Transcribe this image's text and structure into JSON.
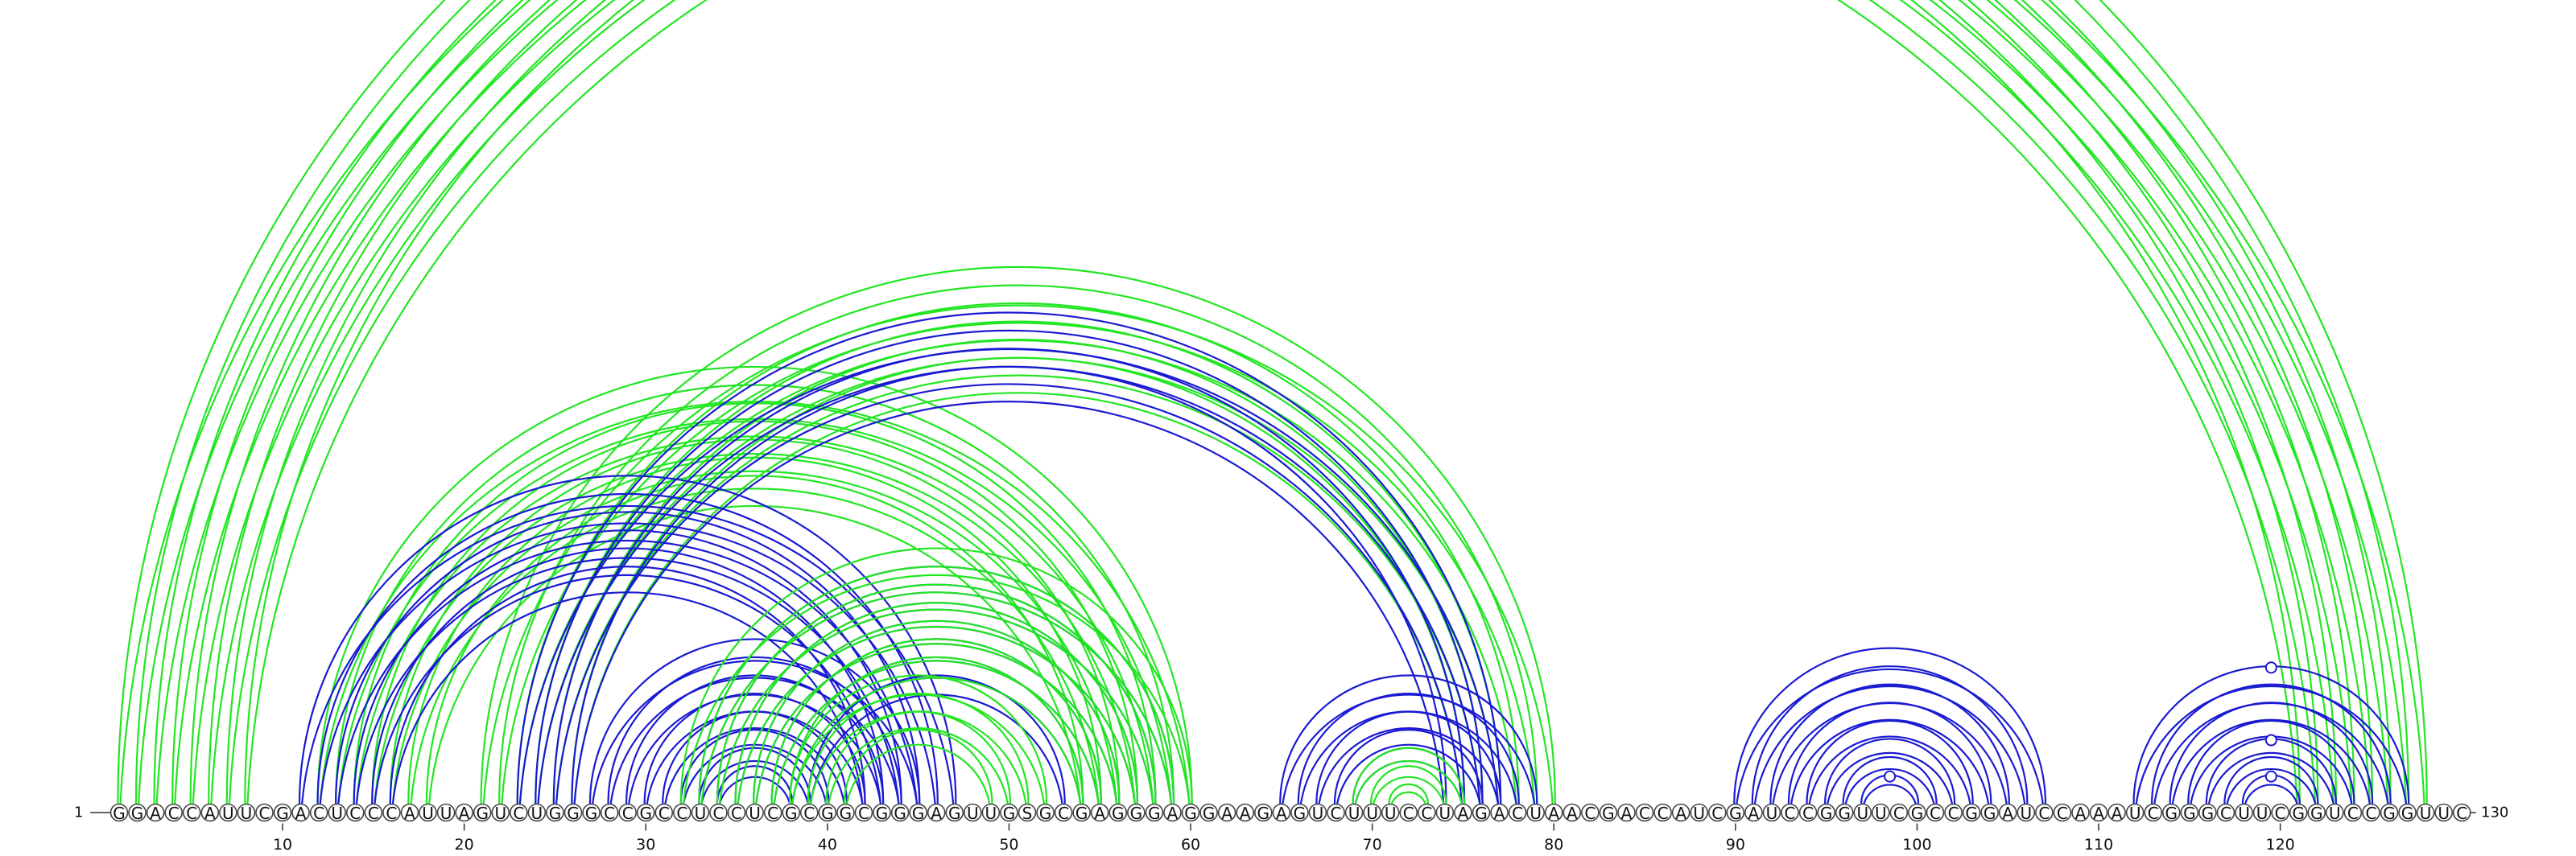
{
  "sequence": "GGACCAUUCGACUCCCAUUAGUCUGGGCCGCCUCCUCGCGGCGGGAGUUGSGCGAGGGAGGAAGAGUCUUUCCUAGACUAACGACCAUCGAUCCGGUUCGCCGGAUCCAAAUCGGGCUUCGGUCCGGUUC",
  "start_label": "1",
  "end_label": "130",
  "ticks": [
    "10",
    "20",
    "30",
    "40",
    "50",
    "60",
    "70",
    "80",
    "90",
    "100",
    "110",
    "120"
  ],
  "colors": {
    "green": "#22e622",
    "blue": "#1a1ad2"
  },
  "arc_groups": [
    {
      "color": "green",
      "i": [
        1,
        2,
        3,
        4,
        5,
        6,
        7,
        8
      ],
      "j": [
        128,
        127,
        126,
        125,
        124,
        123,
        122,
        121
      ]
    },
    {
      "color": "green",
      "i": [
        12,
        13,
        14,
        15,
        16,
        17,
        18
      ],
      "j": [
        60,
        59,
        58,
        57,
        56,
        55,
        54
      ]
    },
    {
      "color": "green",
      "i": [
        21,
        22,
        23,
        24,
        25,
        26
      ],
      "j": [
        80,
        79,
        78,
        77,
        76,
        75
      ]
    },
    {
      "color": "blue",
      "i": [
        11,
        12,
        13,
        14,
        15,
        16
      ],
      "j": [
        47,
        46,
        45,
        44,
        43,
        42
      ]
    },
    {
      "color": "blue",
      "i": [
        23,
        24,
        25,
        26
      ],
      "j": [
        77,
        76,
        75,
        74
      ]
    },
    {
      "color": "blue",
      "i": [
        27,
        28,
        29,
        30,
        31,
        32,
        33,
        34
      ],
      "j": [
        45,
        44,
        43,
        42,
        41,
        40,
        39,
        38
      ]
    },
    {
      "color": "blue",
      "i": [
        33,
        34,
        35,
        36,
        37,
        38,
        39
      ],
      "j": [
        59,
        58,
        57,
        56,
        55,
        54,
        53
      ]
    },
    {
      "color": "green",
      "i": [
        32,
        33,
        34,
        35,
        36,
        37,
        38
      ],
      "j": [
        60,
        59,
        58,
        57,
        56,
        55,
        54
      ]
    },
    {
      "color": "green",
      "i": [
        38,
        39,
        40,
        41
      ],
      "j": [
        52,
        51,
        50,
        49
      ]
    },
    {
      "color": "blue",
      "i": [
        65,
        66,
        67,
        68,
        69
      ],
      "j": [
        79,
        78,
        77,
        76,
        75
      ]
    },
    {
      "color": "green",
      "i": [
        69,
        70,
        71
      ],
      "j": [
        75,
        74,
        73
      ]
    },
    {
      "color": "blue",
      "i": [
        90,
        91,
        92,
        93,
        94,
        95,
        96,
        97
      ],
      "j": [
        107,
        106,
        105,
        104,
        103,
        102,
        101,
        100
      ]
    },
    {
      "color": "blue",
      "i": [
        112,
        113,
        114,
        115,
        116,
        117,
        118
      ],
      "j": [
        127,
        126,
        125,
        124,
        123,
        122,
        121
      ]
    }
  ],
  "markers": [
    {
      "color": "green",
      "i": 2,
      "j": 128
    },
    {
      "color": "blue",
      "i": 112,
      "j": 127
    },
    {
      "color": "blue",
      "i": 116,
      "j": 123
    },
    {
      "color": "blue",
      "i": 118,
      "j": 121
    },
    {
      "color": "blue",
      "i": 97,
      "j": 100
    }
  ]
}
